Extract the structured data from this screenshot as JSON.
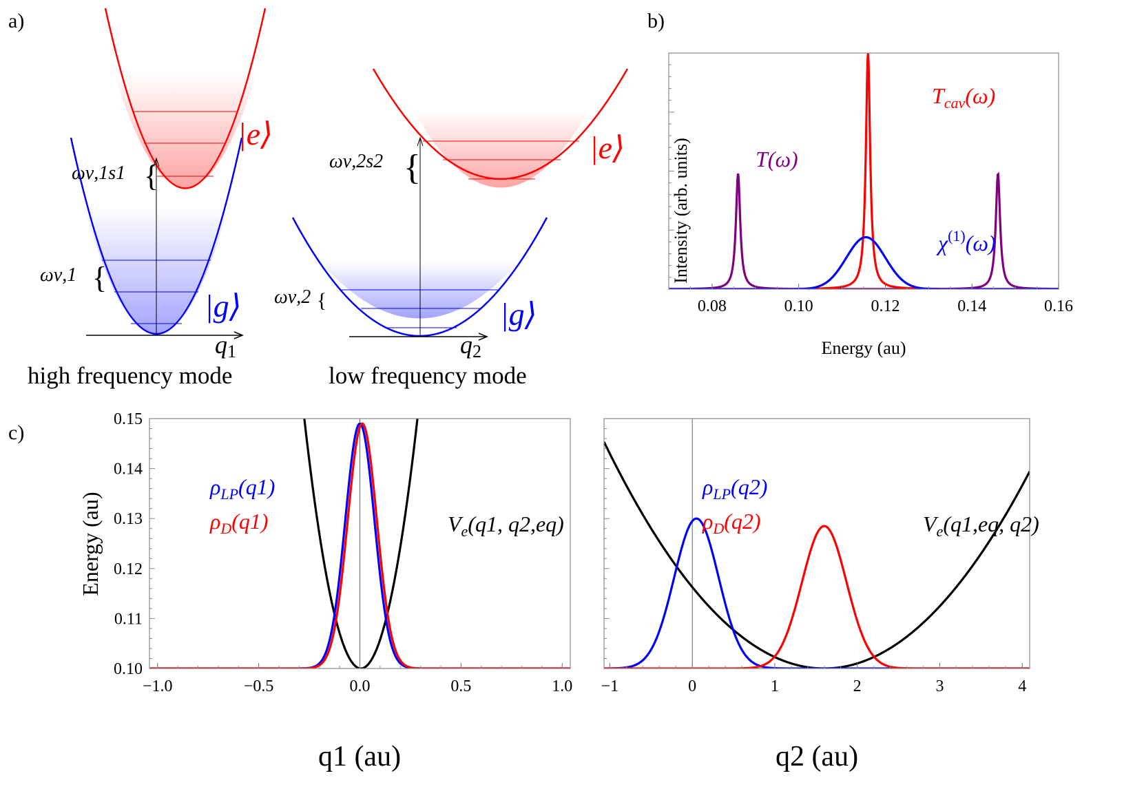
{
  "panel_labels": {
    "a": "a)",
    "b": "b)",
    "c": "c)"
  },
  "diagram_a": {
    "high_mode": {
      "caption": "high frequency mode",
      "axis_label": "q",
      "axis_sub": "1",
      "excited_label": "|e⟩",
      "ground_label": "|g⟩",
      "spacing_label": "ων,1",
      "shift_label": "ων,1s1"
    },
    "low_mode": {
      "caption": "low frequency mode",
      "axis_label": "q",
      "axis_sub": "2",
      "excited_label": "|e⟩",
      "ground_label": "|g⟩",
      "spacing_label": "ων,2",
      "shift_label": "ων,2s2"
    },
    "colors": {
      "excited": "#ff0000",
      "ground": "#0000ff"
    }
  },
  "chart_data": [
    {
      "id": "b",
      "type": "line",
      "xlabel": "Energy (au)",
      "ylabel": "Intensity (arb. units)",
      "xlim": [
        0.07,
        0.16
      ],
      "ylim": [
        0,
        1
      ],
      "xticks": [
        "0.08",
        "0.10",
        "0.12",
        "0.14",
        "0.16"
      ],
      "xtick_values": [
        0.08,
        0.1,
        0.12,
        0.14,
        0.16
      ],
      "grid": false,
      "series": [
        {
          "name": "T(ω)",
          "color": "#800080",
          "shape": "lorentzian",
          "peaks": [
            {
              "center": 0.086,
              "height": 0.49,
              "hwhm": 0.0006
            },
            {
              "center": 0.146,
              "height": 0.49,
              "hwhm": 0.0006
            }
          ]
        },
        {
          "name": "Tcav(ω)",
          "color": "#ff0000",
          "shape": "lorentzian",
          "peaks": [
            {
              "center": 0.116,
              "height": 1.0,
              "hwhm": 0.0006
            }
          ]
        },
        {
          "name": "χ(1)(ω)",
          "color": "#0000ff",
          "shape": "gaussian",
          "peaks": [
            {
              "center": 0.1155,
              "height": 0.22,
              "sigma": 0.0045
            }
          ]
        }
      ],
      "labels": {
        "T": {
          "main": "T",
          "sub": "",
          "sup": "",
          "arg": "(ω)"
        },
        "Tcav": {
          "main": "T",
          "sub": "cav",
          "sup": "",
          "arg": "(ω)"
        },
        "chi": {
          "main": "χ",
          "sub": "",
          "sup": "(1)",
          "arg": "(ω)"
        }
      }
    },
    {
      "id": "c-left",
      "type": "line",
      "xlabel": "q1 (au)",
      "ylabel": "Energy (au)",
      "xlim": [
        -1.04,
        1.04
      ],
      "ylim": [
        0.1,
        0.15
      ],
      "xticks": [
        "−1.0",
        "−0.5",
        "0.0",
        "0.5",
        "1.0"
      ],
      "xtick_values": [
        -1.0,
        -0.5,
        0.0,
        0.5,
        1.0
      ],
      "yticks": [
        "0.10",
        "0.11",
        "0.12",
        "0.13",
        "0.14",
        "0.15"
      ],
      "ytick_values": [
        0.1,
        0.11,
        0.12,
        0.13,
        0.14,
        0.15
      ],
      "grid": false,
      "series": [
        {
          "name": "Ve(q1,q2,eq)",
          "color": "#000000",
          "shape": "parabola",
          "center": 0.005,
          "base": 0.1,
          "curvature": 0.64
        },
        {
          "name": "ρLP(q1)",
          "color": "#0000ff",
          "shape": "gaussian",
          "center": 0.0,
          "base": 0.1,
          "height": 0.049,
          "sigma": 0.072
        },
        {
          "name": "ρD(q1)",
          "color": "#ff0000",
          "shape": "gaussian",
          "center": 0.012,
          "base": 0.1,
          "height": 0.049,
          "sigma": 0.072
        }
      ],
      "labels": {
        "rho_lp": {
          "main": "ρ",
          "sub": "LP",
          "arg": "(q1)"
        },
        "rho_d": {
          "main": "ρ",
          "sub": "D",
          "arg": "(q1)"
        },
        "v": {
          "main": "V",
          "sub": "e",
          "arg": "(q1, q2,eq)"
        }
      }
    },
    {
      "id": "c-right",
      "type": "line",
      "xlabel": "q2 (au)",
      "ylabel": "",
      "xlim": [
        -1.07,
        4.09
      ],
      "ylim": [
        0.1,
        0.15
      ],
      "xticks": [
        "−1",
        "0",
        "1",
        "2",
        "3",
        "4"
      ],
      "xtick_values": [
        -1,
        0,
        1,
        2,
        3,
        4
      ],
      "grid": false,
      "series": [
        {
          "name": "Ve(q1,eq,q2)",
          "color": "#000000",
          "shape": "parabola",
          "center": 1.6,
          "base": 0.1,
          "curvature": 0.00636
        },
        {
          "name": "ρLP(q2)",
          "color": "#0000ff",
          "shape": "gaussian",
          "center": 0.05,
          "base": 0.1,
          "height": 0.03,
          "sigma": 0.27
        },
        {
          "name": "ρD(q2)",
          "color": "#ff0000",
          "shape": "gaussian",
          "center": 1.6,
          "base": 0.1,
          "height": 0.0285,
          "sigma": 0.27
        }
      ],
      "labels": {
        "rho_lp": {
          "main": "ρ",
          "sub": "LP",
          "arg": "(q2)"
        },
        "rho_d": {
          "main": "ρ",
          "sub": "D",
          "arg": "(q2)"
        },
        "v": {
          "main": "V",
          "sub": "e",
          "arg": "(q1,eq, q2)"
        }
      }
    }
  ]
}
